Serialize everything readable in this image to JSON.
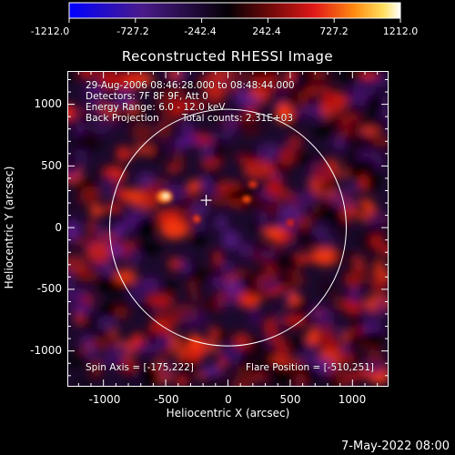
{
  "colorbar": {
    "tick_labels": [
      "-1212.0",
      "-727.2",
      "-242.4",
      "242.4",
      "727.2",
      "1212.0"
    ],
    "ticks": [
      -1212.0,
      -727.2,
      -242.4,
      242.4,
      727.2,
      1212.0
    ],
    "range": [
      -1212.0,
      1212.0
    ],
    "colors": [
      "#0000ff",
      "#3a1a7a",
      "#000000",
      "#7a0a0a",
      "#d81010",
      "#ff7a10",
      "#ffd030",
      "#ffffff"
    ]
  },
  "title": "Reconstructed RHESSI Image",
  "annotations": {
    "line1": "29-Aug-2006 08:46:28.000 to 08:48:44.000",
    "line2": "Detectors: 7F 8F 9F, Att 0",
    "line3_a": "Energy Range: 6.0 - 12.0 keV",
    "line4_a": "Back Projection",
    "line4_b": "Total counts: 2.31E+03",
    "spin_axis": "Spin Axis = [-175,222]",
    "flare_position": "Flare Position = [-510,251]"
  },
  "axes": {
    "xlabel": "Heliocentric X (arcsec)",
    "ylabel": "Heliocentric Y (arcsec)",
    "xlim": [
      -1290,
      1290
    ],
    "ylim": [
      -1290,
      1270
    ],
    "xticks": [
      -1000,
      -500,
      0,
      500,
      1000
    ],
    "yticks": [
      1000,
      500,
      0,
      -500,
      -1000
    ],
    "xtick_labels": [
      "-1000",
      "-500",
      "0",
      "500",
      "1000"
    ],
    "ytick_labels": [
      "1000",
      "500",
      "0",
      "-500",
      "-1000"
    ]
  },
  "solar_limb": {
    "center": [
      0,
      0
    ],
    "radius_arcsec": 950
  },
  "spin_axis_marker": {
    "x": -175,
    "y": 222
  },
  "bright_source": {
    "x": -510,
    "y": 251
  },
  "footer_date": "7-May-2022 08:00"
}
